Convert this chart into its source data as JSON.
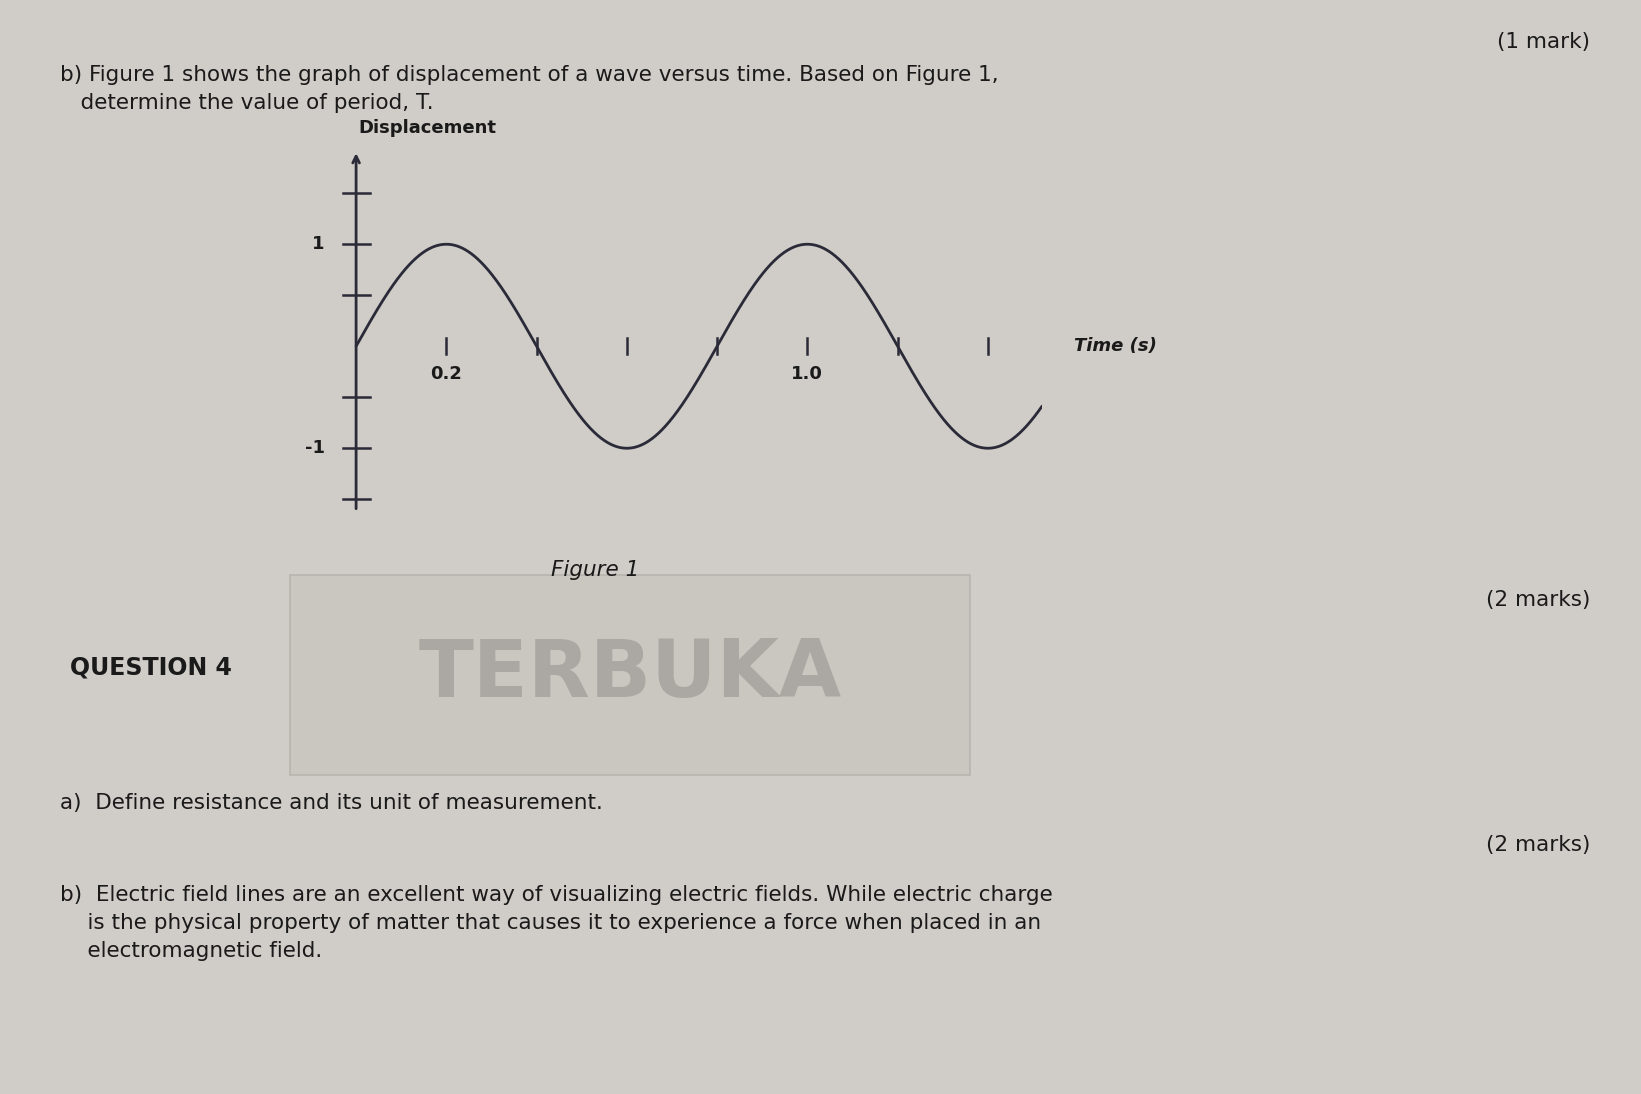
{
  "background_color": "#d0ccc7",
  "title_mark": "(1 mark)",
  "text_b_line1": "b) Figure 1 shows the graph of displacement of a wave versus time. Based on Figure 1,",
  "text_b_line2": "   determine the value of period, T.",
  "figure_caption": "Figure 1",
  "marks_2": "(2 marks)",
  "question4": "QUESTION 4",
  "terbuka_text": "TERBUKA",
  "qa_line": "a)  Define resistance and its unit of measurement.",
  "marks_2b": "(2 marks)",
  "qb_line1": "b)  Electric field lines are an excellent way of visualizing electric fields. While electric charge",
  "qb_line2": "    is the physical property of matter that causes it to experience a force when placed in an",
  "qb_line3": "    electromagnetic field.",
  "ylabel": "Displacement",
  "xlabel": "Time (s)",
  "wave_amplitude": 1.0,
  "wave_period": 0.8,
  "wave_color": "#2a2a38",
  "axis_color": "#2a2a38",
  "text_color": "#1a1a1a",
  "graph_xlim": [
    -0.08,
    1.52
  ],
  "graph_ylim": [
    -1.7,
    2.0
  ],
  "xtick_labeled": [
    0.2,
    1.0
  ],
  "xtick_unlabeled": [
    0.4,
    0.6,
    0.8,
    1.2,
    1.4
  ],
  "ytick_labeled": [
    -1,
    1
  ],
  "ytick_unlabeled": [
    -0.5,
    0.5,
    1.5,
    -1.5
  ]
}
